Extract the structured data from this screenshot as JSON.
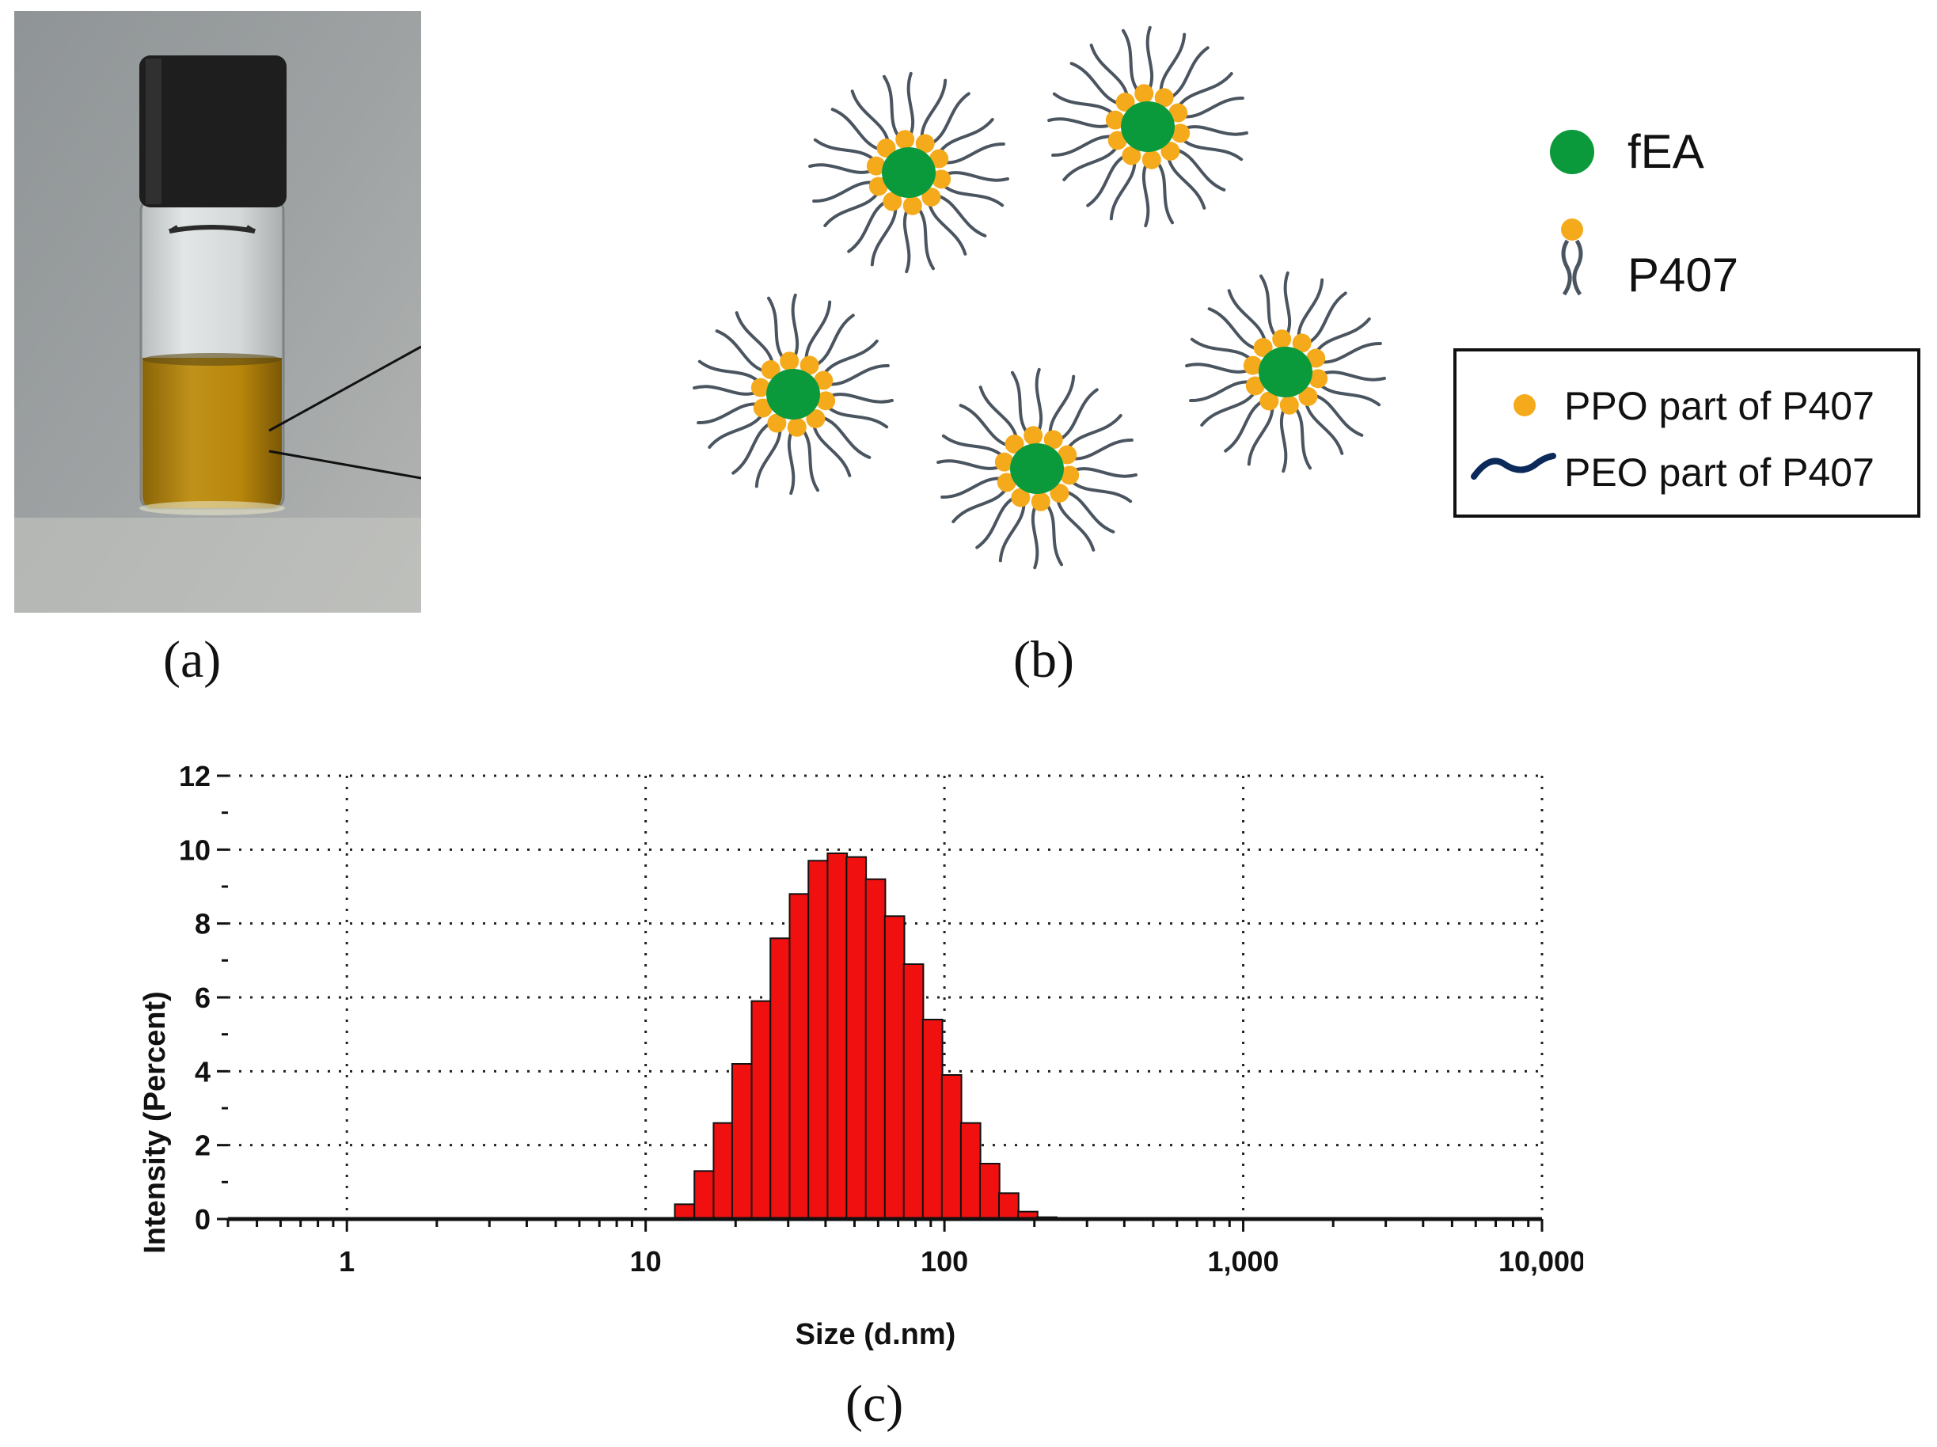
{
  "panels": {
    "a_label": "(a)",
    "b_label": "(b)",
    "c_label": "(c)"
  },
  "legend": {
    "fea_label": "fEA",
    "p407_label": "P407",
    "ppo_label": "PPO part of P407",
    "peo_label": "PEO part of P407"
  },
  "colors": {
    "core_green": "#0a9a3c",
    "ppo_orange": "#f5aa1c",
    "chain_gray": "#4a5560",
    "peo_navy": "#0b2a5a",
    "bar_red": "#f01010",
    "liquid": "#b8860b",
    "cap": "#1e1e1e"
  },
  "chart_data": {
    "type": "bar",
    "title": "",
    "xlabel": "Size (d.nm)",
    "ylabel": "Intensity (Percent)",
    "x_scale": "log",
    "xlim": [
      0.4,
      10000
    ],
    "ylim": [
      0,
      12
    ],
    "x_ticks": [
      {
        "value": 1,
        "label": "1"
      },
      {
        "value": 10,
        "label": "10"
      },
      {
        "value": 100,
        "label": "100"
      },
      {
        "value": 1000,
        "label": "1,000"
      },
      {
        "value": 10000,
        "label": "10,000"
      }
    ],
    "y_ticks": [
      0,
      2,
      4,
      6,
      8,
      10,
      12
    ],
    "grid": true,
    "bin_sizes": [
      13.5,
      15.7,
      18.2,
      21.0,
      24.4,
      28.2,
      32.7,
      37.8,
      43.8,
      50.7,
      58.8,
      68.1,
      78.8,
      91.3,
      105.7,
      122.4,
      141.8,
      164.2,
      190.1,
      220.2
    ],
    "values": [
      0.4,
      1.3,
      2.6,
      4.2,
      5.9,
      7.6,
      8.8,
      9.7,
      9.9,
      9.8,
      9.2,
      8.2,
      6.9,
      5.4,
      3.9,
      2.6,
      1.5,
      0.7,
      0.2,
      0.05
    ]
  }
}
